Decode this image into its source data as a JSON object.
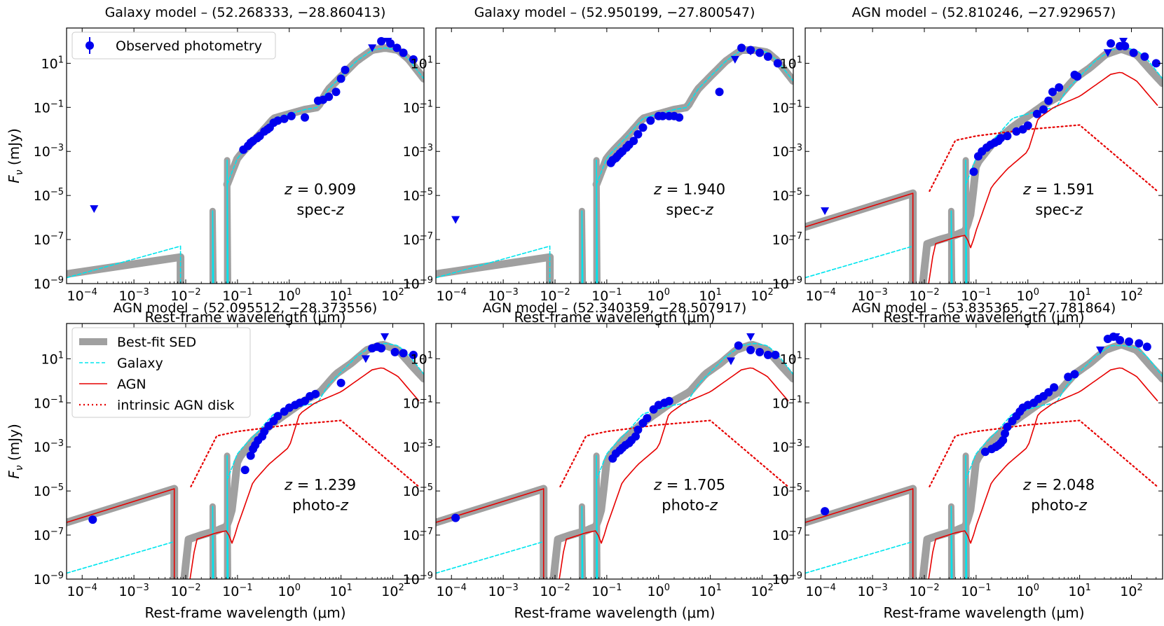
{
  "figure": {
    "xlabel_prefix": "Rest-frame wavelength (",
    "xlabel_unit": "μm",
    "xlabel_suffix": ")",
    "ylabel_main": "F",
    "ylabel_sub": "ν",
    "ylabel_unit": " (mJy)"
  },
  "colors": {
    "best_fit": "#a0a0a0",
    "galaxy": "#00e5ee",
    "agn": "#e60000",
    "photometry": "#0000ee"
  },
  "chart_data": [
    {
      "type": "line",
      "title": "Galaxy model – (52.268333, −28.860413)",
      "redshift_label": "z = 0.909",
      "z_value": "0.909",
      "z_type": "spec-z",
      "xlim": [
        5e-05,
        400
      ],
      "ylim": [
        1e-09,
        400
      ],
      "xticks": [
        -4,
        -3,
        -2,
        -1,
        0,
        1,
        2
      ],
      "yticks": [
        -9,
        -7,
        -5,
        -3,
        -1,
        1
      ],
      "has_agn": false,
      "legend": [
        "Observed photometry"
      ],
      "photometry": [
        [
          0.13,
          0.0012
        ],
        [
          0.16,
          0.0018
        ],
        [
          0.18,
          0.0025
        ],
        [
          0.2,
          0.003
        ],
        [
          0.24,
          0.004
        ],
        [
          0.27,
          0.005
        ],
        [
          0.33,
          0.008
        ],
        [
          0.38,
          0.01
        ],
        [
          0.42,
          0.012
        ],
        [
          0.5,
          0.02
        ],
        [
          0.6,
          0.025
        ],
        [
          0.8,
          0.03
        ],
        [
          1.1,
          0.04
        ],
        [
          2.0,
          0.035
        ],
        [
          3.6,
          0.2
        ],
        [
          4.5,
          0.22
        ],
        [
          5.8,
          0.3
        ],
        [
          8,
          0.5
        ],
        [
          10,
          2
        ],
        [
          12,
          5
        ],
        [
          60,
          100
        ],
        [
          90,
          80
        ],
        [
          120,
          50
        ],
        [
          160,
          30
        ],
        [
          250,
          15
        ]
      ],
      "upper_limits": [
        [
          0.00017,
          2.5e-06
        ],
        [
          40,
          50
        ],
        [
          80,
          100
        ]
      ]
    },
    {
      "type": "line",
      "title": "Galaxy model – (52.950199, −27.800547)",
      "redshift_label": "z = 1.940",
      "z_value": "1.940",
      "z_type": "spec-z",
      "xlim": [
        5e-05,
        400
      ],
      "ylim": [
        1e-09,
        400
      ],
      "xticks": [
        -4,
        -3,
        -2,
        -1,
        0,
        1,
        2
      ],
      "yticks": [
        -9,
        -7,
        -5,
        -3,
        -1,
        1
      ],
      "has_agn": false,
      "legend": [],
      "photometry": [
        [
          0.12,
          0.0003
        ],
        [
          0.13,
          0.0004
        ],
        [
          0.15,
          0.0005
        ],
        [
          0.16,
          0.0006
        ],
        [
          0.18,
          0.0008
        ],
        [
          0.2,
          0.001
        ],
        [
          0.24,
          0.0015
        ],
        [
          0.27,
          0.002
        ],
        [
          0.33,
          0.003
        ],
        [
          0.4,
          0.006
        ],
        [
          0.5,
          0.012
        ],
        [
          0.7,
          0.025
        ],
        [
          1.0,
          0.04
        ],
        [
          1.2,
          0.04
        ],
        [
          1.6,
          0.04
        ],
        [
          2.0,
          0.04
        ],
        [
          2.5,
          0.035
        ],
        [
          15,
          0.5
        ],
        [
          40,
          50
        ],
        [
          60,
          40
        ],
        [
          90,
          30
        ],
        [
          130,
          20
        ],
        [
          200,
          10
        ]
      ],
      "upper_limits": [
        [
          0.00012,
          8e-07
        ],
        [
          30,
          15
        ],
        [
          60,
          35
        ]
      ]
    },
    {
      "type": "line",
      "title": "AGN model – (52.810246, −27.929657)",
      "redshift_label": "z = 1.591",
      "z_value": "1.591",
      "z_type": "spec-z",
      "xlim": [
        5e-05,
        400
      ],
      "ylim": [
        1e-09,
        400
      ],
      "xticks": [
        -4,
        -3,
        -2,
        -1,
        0,
        1,
        2
      ],
      "yticks": [
        -9,
        -7,
        -5,
        -3,
        -1,
        1
      ],
      "has_agn": true,
      "legend": [],
      "photometry": [
        [
          0.09,
          0.00012
        ],
        [
          0.11,
          0.0006
        ],
        [
          0.13,
          0.001
        ],
        [
          0.16,
          0.0015
        ],
        [
          0.19,
          0.002
        ],
        [
          0.23,
          0.0025
        ],
        [
          0.27,
          0.003
        ],
        [
          0.3,
          0.004
        ],
        [
          0.4,
          0.005
        ],
        [
          0.6,
          0.008
        ],
        [
          0.8,
          0.01
        ],
        [
          1.0,
          0.015
        ],
        [
          1.5,
          0.05
        ],
        [
          2,
          0.08
        ],
        [
          2.5,
          0.2
        ],
        [
          3,
          0.5
        ],
        [
          4,
          0.8
        ],
        [
          8,
          3
        ],
        [
          9,
          2.5
        ],
        [
          40,
          80
        ],
        [
          60,
          60
        ],
        [
          75,
          60
        ],
        [
          110,
          30
        ],
        [
          180,
          20
        ],
        [
          300,
          10
        ]
      ],
      "upper_limits": [
        [
          0.00012,
          2e-06
        ],
        [
          35,
          30
        ],
        [
          70,
          100
        ]
      ]
    },
    {
      "type": "line",
      "title": "AGN model – (52.095512, −28.373556)",
      "redshift_label": "z = 1.239",
      "z_value": "1.239",
      "z_type": "photo-z",
      "xlim": [
        5e-05,
        400
      ],
      "ylim": [
        1e-09,
        400
      ],
      "xticks": [
        -4,
        -3,
        -2,
        -1,
        0,
        1,
        2
      ],
      "yticks": [
        -9,
        -7,
        -5,
        -3,
        -1,
        1
      ],
      "has_agn": true,
      "legend": [
        "Best-fit SED",
        "Galaxy",
        "AGN",
        "intrinsic AGN disk"
      ],
      "photometry": [
        [
          0.00016,
          5e-07
        ],
        [
          0.14,
          9e-05
        ],
        [
          0.18,
          0.0004
        ],
        [
          0.2,
          0.0008
        ],
        [
          0.22,
          0.0012
        ],
        [
          0.25,
          0.002
        ],
        [
          0.3,
          0.003
        ],
        [
          0.33,
          0.005
        ],
        [
          0.4,
          0.009
        ],
        [
          0.5,
          0.015
        ],
        [
          0.6,
          0.025
        ],
        [
          0.8,
          0.04
        ],
        [
          1.0,
          0.06
        ],
        [
          1.3,
          0.08
        ],
        [
          1.6,
          0.1
        ],
        [
          2.0,
          0.12
        ],
        [
          2.5,
          0.2
        ],
        [
          3.2,
          0.25
        ],
        [
          10,
          0.8
        ],
        [
          40,
          30
        ],
        [
          50,
          35
        ],
        [
          60,
          30
        ],
        [
          110,
          20
        ],
        [
          160,
          18
        ],
        [
          250,
          15
        ]
      ],
      "upper_limits": [
        [
          30,
          10
        ],
        [
          70,
          100
        ]
      ]
    },
    {
      "type": "line",
      "title": "AGN model – (52.340359, −28.507917)",
      "redshift_label": "z = 1.705",
      "z_value": "1.705",
      "z_type": "photo-z",
      "xlim": [
        5e-05,
        400
      ],
      "ylim": [
        1e-09,
        400
      ],
      "xticks": [
        -4,
        -3,
        -2,
        -1,
        0,
        1,
        2
      ],
      "yticks": [
        -9,
        -7,
        -5,
        -3,
        -1,
        1
      ],
      "has_agn": true,
      "legend": [],
      "photometry": [
        [
          0.00012,
          6e-07
        ],
        [
          0.13,
          0.0003
        ],
        [
          0.15,
          0.0005
        ],
        [
          0.18,
          0.0007
        ],
        [
          0.2,
          0.0009
        ],
        [
          0.23,
          0.0012
        ],
        [
          0.27,
          0.0015
        ],
        [
          0.3,
          0.002
        ],
        [
          0.36,
          0.003
        ],
        [
          0.4,
          0.006
        ],
        [
          0.5,
          0.012
        ],
        [
          0.6,
          0.02
        ],
        [
          0.8,
          0.05
        ],
        [
          1.0,
          0.08
        ],
        [
          1.3,
          0.1
        ],
        [
          1.6,
          0.12
        ],
        [
          35,
          40
        ],
        [
          60,
          25
        ],
        [
          90,
          20
        ],
        [
          130,
          15
        ],
        [
          180,
          15
        ]
      ],
      "upper_limits": [
        [
          25,
          8
        ],
        [
          60,
          100
        ]
      ]
    },
    {
      "type": "line",
      "title": "AGN model – (53.835365, −27.781864)",
      "redshift_label": "z = 2.048",
      "z_value": "2.048",
      "z_type": "photo-z",
      "xlim": [
        5e-05,
        400
      ],
      "ylim": [
        1e-09,
        400
      ],
      "xticks": [
        -4,
        -3,
        -2,
        -1,
        0,
        1,
        2
      ],
      "yticks": [
        -9,
        -7,
        -5,
        -3,
        -1,
        1
      ],
      "has_agn": true,
      "legend": [],
      "photometry": [
        [
          0.00012,
          1.2e-06
        ],
        [
          0.15,
          0.0006
        ],
        [
          0.2,
          0.0008
        ],
        [
          0.24,
          0.001
        ],
        [
          0.27,
          0.0012
        ],
        [
          0.3,
          0.0015
        ],
        [
          0.33,
          0.002
        ],
        [
          0.36,
          0.004
        ],
        [
          0.4,
          0.008
        ],
        [
          0.5,
          0.015
        ],
        [
          0.6,
          0.025
        ],
        [
          0.7,
          0.04
        ],
        [
          0.8,
          0.06
        ],
        [
          1.0,
          0.08
        ],
        [
          1.3,
          0.1
        ],
        [
          1.6,
          0.15
        ],
        [
          2.0,
          0.2
        ],
        [
          2.5,
          0.3
        ],
        [
          3.2,
          0.5
        ],
        [
          6,
          1.5
        ],
        [
          8,
          2
        ],
        [
          35,
          80
        ],
        [
          45,
          100
        ],
        [
          60,
          70
        ],
        [
          90,
          60
        ],
        [
          140,
          50
        ],
        [
          200,
          35
        ]
      ],
      "upper_limits": [
        [
          25,
          25
        ],
        [
          50,
          100
        ]
      ]
    }
  ]
}
